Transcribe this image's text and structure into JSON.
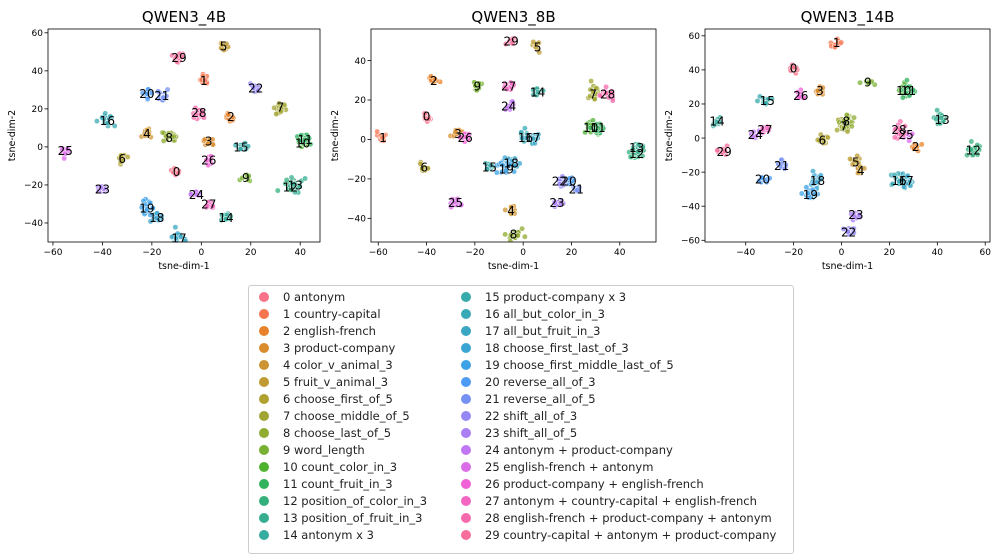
{
  "chart_data": {
    "type": "scatter",
    "legend_placement": "bottom-center",
    "legend": [
      {
        "id": "0",
        "label": "0 antonym",
        "color": "#f77189"
      },
      {
        "id": "1",
        "label": "1 country-capital",
        "color": "#f7754f"
      },
      {
        "id": "2",
        "label": "2 english-french",
        "color": "#e9822a"
      },
      {
        "id": "3",
        "label": "3 product-company",
        "color": "#da8c2c"
      },
      {
        "id": "4",
        "label": "4 color_v_animal_3",
        "color": "#cc9531"
      },
      {
        "id": "5",
        "label": "5 fruit_v_animal_3",
        "color": "#bf9b32"
      },
      {
        "id": "6",
        "label": "6 choose_first_of_5",
        "color": "#b0a131"
      },
      {
        "id": "7",
        "label": "7 choose_middle_of_5",
        "color": "#a1a632"
      },
      {
        "id": "8",
        "label": "8 choose_last_of_5",
        "color": "#8fab31"
      },
      {
        "id": "9",
        "label": "9 word_length",
        "color": "#77b131"
      },
      {
        "id": "10",
        "label": "10 count_color_in_3",
        "color": "#50b131"
      },
      {
        "id": "11",
        "label": "11 count_fruit_in_3",
        "color": "#32b25f"
      },
      {
        "id": "12",
        "label": "12 position_of_color_in_3",
        "color": "#34b07d"
      },
      {
        "id": "13",
        "label": "13 position_of_fruit_in_3",
        "color": "#35ae90"
      },
      {
        "id": "14",
        "label": "14 antonym x 3",
        "color": "#36ac9e"
      },
      {
        "id": "15",
        "label": "15 product-company x 3",
        "color": "#37aaaa"
      },
      {
        "id": "16",
        "label": "16 all_but_color_in_3",
        "color": "#38a9b6"
      },
      {
        "id": "17",
        "label": "17 all_but_fruit_in_3",
        "color": "#39a7c3"
      },
      {
        "id": "18",
        "label": "18 choose_first_last_of_3",
        "color": "#3ba5d2"
      },
      {
        "id": "19",
        "label": "19 choose_first_middle_last_of_5",
        "color": "#3ea1e5"
      },
      {
        "id": "20",
        "label": "20 reverse_all_of_3",
        "color": "#4d9bf4"
      },
      {
        "id": "21",
        "label": "21 reverse_all_of_5",
        "color": "#7591f4"
      },
      {
        "id": "22",
        "label": "22 shift_all_of_3",
        "color": "#9488f4"
      },
      {
        "id": "23",
        "label": "23 shift_all_of_5",
        "color": "#ab7ff4"
      },
      {
        "id": "24",
        "label": "24 antonym + product-company",
        "color": "#c177f4"
      },
      {
        "id": "25",
        "label": "25 english-french + antonym",
        "color": "#db6ce8"
      },
      {
        "id": "26",
        "label": "26 product-company + english-french",
        "color": "#f060d6"
      },
      {
        "id": "27",
        "label": "27 antonym + country-capital + english-french",
        "color": "#f365c0"
      },
      {
        "id": "28",
        "label": "28 english-french + product-company + antonym",
        "color": "#f56aac"
      },
      {
        "id": "29",
        "label": "29 country-capital + antonym + product-company",
        "color": "#f66e9b"
      }
    ],
    "panels": [
      {
        "title": "QWEN3_4B",
        "xlabel": "tsne-dim-1",
        "ylabel": "tsne-dim-2",
        "xlim": [
          -62,
          48
        ],
        "ylim": [
          -50,
          62
        ],
        "xticks": [
          -60,
          -40,
          -20,
          0,
          20,
          40
        ],
        "yticks": [
          -40,
          -20,
          0,
          20,
          40,
          60
        ],
        "xtick_labels": [
          "−60",
          "−40",
          "−20",
          "0",
          "20",
          "40"
        ],
        "ytick_labels": [
          "−40",
          "−20",
          "0",
          "20",
          "40",
          "60"
        ],
        "clusters": [
          {
            "id": "0",
            "x": -10,
            "y": -13
          },
          {
            "id": "1",
            "x": 1,
            "y": 35
          },
          {
            "id": "2",
            "x": 12,
            "y": 16
          },
          {
            "id": "3",
            "x": 3,
            "y": 3
          },
          {
            "id": "4",
            "x": -22,
            "y": 7
          },
          {
            "id": "5",
            "x": 9,
            "y": 53
          },
          {
            "id": "6",
            "x": -32,
            "y": -6
          },
          {
            "id": "7",
            "x": 32,
            "y": 21
          },
          {
            "id": "8",
            "x": -13,
            "y": 5
          },
          {
            "id": "9",
            "x": 18,
            "y": -16
          },
          {
            "id": "10",
            "x": 41,
            "y": 2
          },
          {
            "id": "11",
            "x": 42,
            "y": 4
          },
          {
            "id": "12",
            "x": 36,
            "y": -21
          },
          {
            "id": "13",
            "x": 38,
            "y": -20
          },
          {
            "id": "14",
            "x": 10,
            "y": -37
          },
          {
            "id": "15",
            "x": 16,
            "y": 0
          },
          {
            "id": "16",
            "x": -38,
            "y": 14
          },
          {
            "id": "17",
            "x": -9,
            "y": -48
          },
          {
            "id": "18",
            "x": -18,
            "y": -37
          },
          {
            "id": "19",
            "x": -22,
            "y": -32
          },
          {
            "id": "20",
            "x": -22,
            "y": 28
          },
          {
            "id": "21",
            "x": -16,
            "y": 27
          },
          {
            "id": "22",
            "x": 22,
            "y": 31
          },
          {
            "id": "23",
            "x": -40,
            "y": -22
          },
          {
            "id": "24",
            "x": -2,
            "y": -25
          },
          {
            "id": "25",
            "x": -55,
            "y": -2
          },
          {
            "id": "26",
            "x": 3,
            "y": -7
          },
          {
            "id": "27",
            "x": 3,
            "y": -30
          },
          {
            "id": "28",
            "x": -1,
            "y": 18
          },
          {
            "id": "29",
            "x": -9,
            "y": 47
          }
        ]
      },
      {
        "title": "QWEN3_8B",
        "xlabel": "tsne-dim-1",
        "ylabel": "tsne-dim-2",
        "xlim": [
          -63,
          55
        ],
        "ylim": [
          -52,
          56
        ],
        "xticks": [
          -60,
          -40,
          -20,
          0,
          20,
          40
        ],
        "yticks": [
          -40,
          -20,
          0,
          20,
          40
        ],
        "xtick_labels": [
          "−60",
          "−40",
          "−20",
          "0",
          "20",
          "40"
        ],
        "ytick_labels": [
          "−40",
          "−20",
          "0",
          "20",
          "40"
        ],
        "clusters": [
          {
            "id": "0",
            "x": -40,
            "y": 12
          },
          {
            "id": "1",
            "x": -58,
            "y": 1
          },
          {
            "id": "2",
            "x": -37,
            "y": 30
          },
          {
            "id": "3",
            "x": -27,
            "y": 3
          },
          {
            "id": "4",
            "x": -5,
            "y": -36
          },
          {
            "id": "5",
            "x": 6,
            "y": 47
          },
          {
            "id": "6",
            "x": -41,
            "y": -14
          },
          {
            "id": "7",
            "x": 29,
            "y": 23
          },
          {
            "id": "8",
            "x": -4,
            "y": -48
          },
          {
            "id": "9",
            "x": -19,
            "y": 27
          },
          {
            "id": "10",
            "x": 28,
            "y": 6
          },
          {
            "id": "11",
            "x": 31,
            "y": 6
          },
          {
            "id": "12",
            "x": 47,
            "y": -7
          },
          {
            "id": "13",
            "x": 47,
            "y": -4
          },
          {
            "id": "14",
            "x": 6,
            "y": 24
          },
          {
            "id": "15",
            "x": -14,
            "y": -14
          },
          {
            "id": "16",
            "x": 1,
            "y": 1
          },
          {
            "id": "17",
            "x": 4,
            "y": 1
          },
          {
            "id": "18",
            "x": -5,
            "y": -12
          },
          {
            "id": "19",
            "x": -7,
            "y": -15
          },
          {
            "id": "20",
            "x": 19,
            "y": -21
          },
          {
            "id": "21",
            "x": 22,
            "y": -25
          },
          {
            "id": "22",
            "x": 15,
            "y": -21
          },
          {
            "id": "23",
            "x": 14,
            "y": -32
          },
          {
            "id": "24",
            "x": -6,
            "y": 17
          },
          {
            "id": "25",
            "x": -28,
            "y": -32
          },
          {
            "id": "26",
            "x": -24,
            "y": 1
          },
          {
            "id": "27",
            "x": -6,
            "y": 27
          },
          {
            "id": "28",
            "x": 35,
            "y": 23
          },
          {
            "id": "29",
            "x": -5,
            "y": 50
          }
        ]
      },
      {
        "title": "QWEN3_14B",
        "xlabel": "tsne-dim-1",
        "ylabel": "tsne-dim-2",
        "xlim": [
          -57,
          62
        ],
        "ylim": [
          -61,
          64
        ],
        "xticks": [
          -40,
          -20,
          0,
          20,
          40,
          60
        ],
        "yticks": [
          -60,
          -40,
          -20,
          0,
          20,
          40,
          60
        ],
        "xtick_labels": [
          "−40",
          "−20",
          "0",
          "20",
          "40",
          "60"
        ],
        "ytick_labels": [
          "−60",
          "−40",
          "−20",
          "0",
          "20",
          "40",
          "60"
        ],
        "clusters": [
          {
            "id": "0",
            "x": -20,
            "y": 41
          },
          {
            "id": "1",
            "x": -2,
            "y": 56
          },
          {
            "id": "2",
            "x": 31,
            "y": -5
          },
          {
            "id": "3",
            "x": -9,
            "y": 28
          },
          {
            "id": "4",
            "x": 8,
            "y": -19
          },
          {
            "id": "5",
            "x": 6,
            "y": -14
          },
          {
            "id": "6",
            "x": -8,
            "y": -1
          },
          {
            "id": "7",
            "x": 1,
            "y": 7
          },
          {
            "id": "8",
            "x": 2,
            "y": 10
          },
          {
            "id": "9",
            "x": 11,
            "y": 33
          },
          {
            "id": "10",
            "x": 26,
            "y": 28
          },
          {
            "id": "11",
            "x": 28,
            "y": 28
          },
          {
            "id": "12",
            "x": 55,
            "y": -7
          },
          {
            "id": "13",
            "x": 42,
            "y": 11
          },
          {
            "id": "14",
            "x": -52,
            "y": 10
          },
          {
            "id": "15",
            "x": -31,
            "y": 22
          },
          {
            "id": "16",
            "x": 24,
            "y": -25
          },
          {
            "id": "17",
            "x": 27,
            "y": -25
          },
          {
            "id": "18",
            "x": -10,
            "y": -25
          },
          {
            "id": "19",
            "x": -13,
            "y": -33
          },
          {
            "id": "20",
            "x": -33,
            "y": -24
          },
          {
            "id": "21",
            "x": -25,
            "y": -16
          },
          {
            "id": "22",
            "x": 3,
            "y": -55
          },
          {
            "id": "23",
            "x": 6,
            "y": -45
          },
          {
            "id": "24",
            "x": -36,
            "y": 2
          },
          {
            "id": "25",
            "x": 27,
            "y": 2
          },
          {
            "id": "26",
            "x": -17,
            "y": 25
          },
          {
            "id": "27",
            "x": -32,
            "y": 5
          },
          {
            "id": "28",
            "x": 24,
            "y": 5
          },
          {
            "id": "29",
            "x": -49,
            "y": -8
          }
        ]
      }
    ]
  }
}
